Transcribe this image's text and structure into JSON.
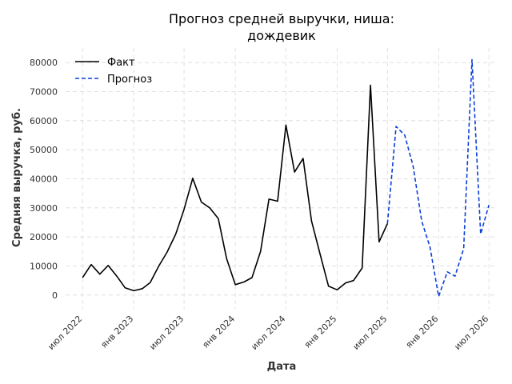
{
  "chart_data": {
    "type": "line",
    "title": [
      "Прогноз средней выручки, ниша:",
      "дождевик"
    ],
    "xlabel": "Дата",
    "ylabel": "Средняя выручка, руб.",
    "xlim": [
      "2022-05-01",
      "2026-08-01"
    ],
    "ylim": [
      -5000,
      85000
    ],
    "x_ticks": [
      {
        "date": "2022-07-01",
        "label": "июл 2022"
      },
      {
        "date": "2023-01-01",
        "label": "янв 2023"
      },
      {
        "date": "2023-07-01",
        "label": "июл 2023"
      },
      {
        "date": "2024-01-01",
        "label": "янв 2024"
      },
      {
        "date": "2024-07-01",
        "label": "июл 2024"
      },
      {
        "date": "2025-01-01",
        "label": "янв 2025"
      },
      {
        "date": "2025-07-01",
        "label": "июл 2025"
      },
      {
        "date": "2026-01-01",
        "label": "янв 2026"
      },
      {
        "date": "2026-07-01",
        "label": "июл 2026"
      }
    ],
    "y_ticks": [
      0,
      10000,
      20000,
      30000,
      40000,
      50000,
      60000,
      70000,
      80000
    ],
    "grid": true,
    "legend_position": "top-left",
    "series": [
      {
        "name": "Факт",
        "color": "#000000",
        "style": "solid",
        "points": [
          [
            "2022-07-01",
            6000
          ],
          [
            "2022-08-01",
            10500
          ],
          [
            "2022-09-01",
            7200
          ],
          [
            "2022-10-01",
            10200
          ],
          [
            "2022-11-01",
            6500
          ],
          [
            "2022-12-01",
            2500
          ],
          [
            "2023-01-01",
            1500
          ],
          [
            "2023-02-01",
            2200
          ],
          [
            "2023-03-01",
            4300
          ],
          [
            "2023-04-01",
            10000
          ],
          [
            "2023-05-01",
            14800
          ],
          [
            "2023-06-01",
            21000
          ],
          [
            "2023-07-01",
            29500
          ],
          [
            "2023-08-01",
            40200
          ],
          [
            "2023-09-01",
            32000
          ],
          [
            "2023-10-01",
            30000
          ],
          [
            "2023-11-01",
            26300
          ],
          [
            "2023-12-01",
            12500
          ],
          [
            "2024-01-01",
            3600
          ],
          [
            "2024-02-01",
            4500
          ],
          [
            "2024-03-01",
            6000
          ],
          [
            "2024-04-01",
            15000
          ],
          [
            "2024-05-01",
            33000
          ],
          [
            "2024-06-01",
            32300
          ],
          [
            "2024-07-01",
            58500
          ],
          [
            "2024-08-01",
            42300
          ],
          [
            "2024-09-01",
            47000
          ],
          [
            "2024-10-01",
            25500
          ],
          [
            "2024-11-01",
            14000
          ],
          [
            "2024-12-01",
            3100
          ],
          [
            "2025-01-01",
            1800
          ],
          [
            "2025-02-01",
            4200
          ],
          [
            "2025-03-01",
            5000
          ],
          [
            "2025-04-01",
            9300
          ],
          [
            "2025-05-01",
            72200
          ],
          [
            "2025-06-01",
            18300
          ],
          [
            "2025-07-01",
            24600
          ]
        ]
      },
      {
        "name": "Прогноз",
        "color": "#0a3fd6",
        "style": "dashed",
        "points": [
          [
            "2025-07-01",
            24600
          ],
          [
            "2025-08-01",
            58000
          ],
          [
            "2025-09-01",
            55000
          ],
          [
            "2025-10-01",
            44500
          ],
          [
            "2025-11-01",
            25500
          ],
          [
            "2025-12-01",
            16500
          ],
          [
            "2026-01-01",
            -500
          ],
          [
            "2026-02-01",
            8000
          ],
          [
            "2026-03-01",
            6500
          ],
          [
            "2026-04-01",
            16000
          ],
          [
            "2026-05-01",
            81000
          ],
          [
            "2026-06-01",
            21000
          ],
          [
            "2026-07-01",
            31000
          ]
        ]
      }
    ]
  }
}
